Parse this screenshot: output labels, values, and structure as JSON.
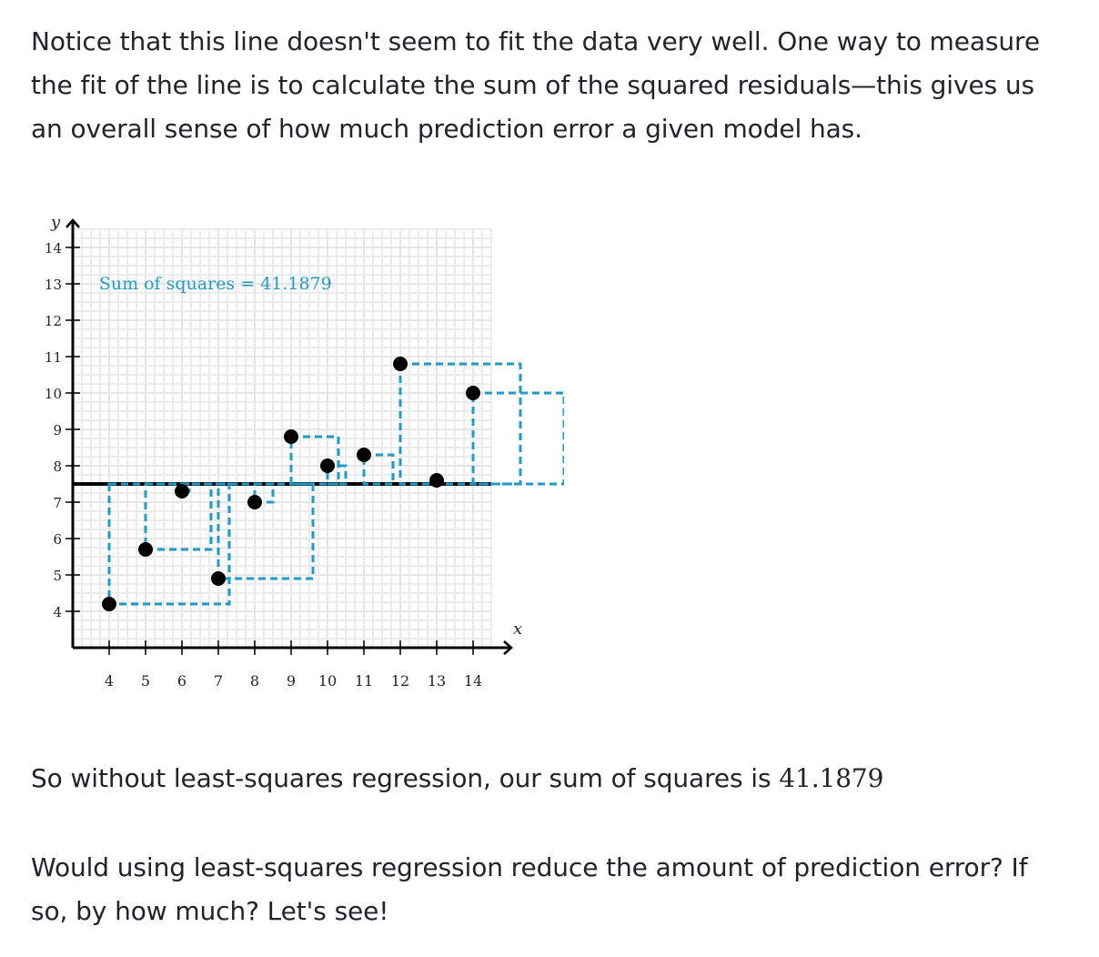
{
  "paragraph1": "Notice that this line doesn't seem to fit the data very well. One way to measure the fit of the line is to calculate the sum of the squared residuals—this gives us an overall sense of how much prediction error a given model has.",
  "paragraph2": {
    "text": "So without least-squares regression, our sum of squares is ",
    "value": "41.1879"
  },
  "paragraph3": "Would using least-squares regression reduce the amount of prediction error? If so, by how much? Let's see!",
  "colors": {
    "residual_square": "#1f9ac9",
    "point": "#000000",
    "line": "#000000",
    "grid": "#e6e6e6",
    "text": "#21242c"
  },
  "chart_data": {
    "type": "scatter",
    "xlabel": "x",
    "ylabel": "y",
    "xlim": [
      3,
      14.5
    ],
    "ylim": [
      3,
      14.5
    ],
    "x_ticks": [
      4,
      5,
      6,
      7,
      8,
      9,
      10,
      11,
      12,
      13,
      14
    ],
    "y_ticks": [
      4,
      5,
      6,
      7,
      8,
      9,
      10,
      11,
      12,
      13,
      14
    ],
    "grid": true,
    "annotation": "Sum of squares = 41.1879",
    "fitted_line": {
      "type": "horizontal",
      "y": 7.5
    },
    "points": [
      {
        "x": 4,
        "y": 4.2
      },
      {
        "x": 5,
        "y": 5.7
      },
      {
        "x": 6,
        "y": 7.3
      },
      {
        "x": 7,
        "y": 4.9
      },
      {
        "x": 8,
        "y": 7
      },
      {
        "x": 9,
        "y": 8.8
      },
      {
        "x": 10,
        "y": 8
      },
      {
        "x": 11,
        "y": 8.3
      },
      {
        "x": 12,
        "y": 10.8
      },
      {
        "x": 13,
        "y": 7.6
      },
      {
        "x": 14,
        "y": 10
      }
    ]
  }
}
